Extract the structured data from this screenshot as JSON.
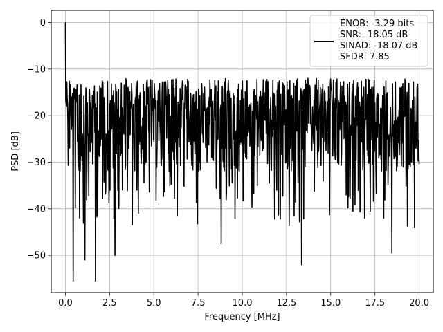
{
  "chart_data": {
    "type": "line",
    "title": "",
    "xlabel": "Frequency [MHz]",
    "ylabel": "PSD [dB]",
    "xlim": [
      -0.8,
      20.8
    ],
    "ylim": [
      -58,
      2.6
    ],
    "x_ticks": [
      {
        "value": 0.0,
        "label": "0.0"
      },
      {
        "value": 2.5,
        "label": "2.5"
      },
      {
        "value": 5.0,
        "label": "5.0"
      },
      {
        "value": 7.5,
        "label": "7.5"
      },
      {
        "value": 10.0,
        "label": "10.0"
      },
      {
        "value": 12.5,
        "label": "12.5"
      },
      {
        "value": 15.0,
        "label": "15.0"
      },
      {
        "value": 17.5,
        "label": "17.5"
      },
      {
        "value": 20.0,
        "label": "20.0"
      }
    ],
    "y_ticks": [
      {
        "value": 0,
        "label": "0"
      },
      {
        "value": -10,
        "label": "−10"
      },
      {
        "value": -20,
        "label": "−20"
      },
      {
        "value": -30,
        "label": "−30"
      },
      {
        "value": -40,
        "label": "−40"
      },
      {
        "value": -50,
        "label": "−50"
      }
    ],
    "grid": true,
    "legend": {
      "placement": "top-right",
      "entries": [
        "ENOB: -3.29 bits",
        "SNR: -18.05 dB",
        "SINAD: -18.07 dB",
        "SFDR: 7.85"
      ]
    },
    "series": [
      {
        "color": "#000000",
        "x_range": [
          0.0,
          20.0
        ],
        "points": 1000,
        "noise_floor_db": -22,
        "upper_envelope_db": -12,
        "lower_envelope_db": -40,
        "peak": {
          "x": 0.0,
          "y": 0
        },
        "notable_minima": [
          {
            "x": 0.45,
            "y": -55.5
          },
          {
            "x": 1.7,
            "y": -55.5
          },
          {
            "x": 13.35,
            "y": -52.0
          },
          {
            "x": 1.1,
            "y": -51.0
          },
          {
            "x": 18.45,
            "y": -49.5
          },
          {
            "x": 8.8,
            "y": -47.5
          },
          {
            "x": 2.8,
            "y": -50.0
          }
        ]
      }
    ]
  }
}
